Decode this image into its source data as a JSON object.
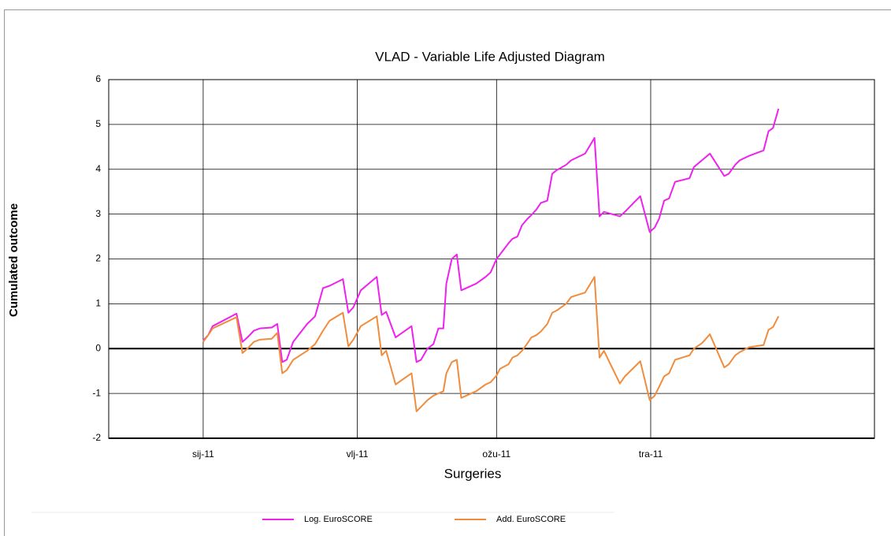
{
  "chart_data": {
    "type": "line",
    "title": "VLAD - Variable Life Adjusted Diagram",
    "x_label": "Surgeries",
    "y_label": "Cumulated outcome",
    "x": [
      0,
      1.0,
      1.9,
      6.7,
      7.9,
      8.9,
      10.2,
      11.4,
      13.8,
      14.9,
      15.9,
      16.8,
      18.1,
      20.9,
      22.5,
      24.1,
      25.4,
      28.1,
      29.2,
      30.2,
      31.7,
      34.9,
      35.9,
      36.8,
      38.7,
      41.9,
      42.9,
      43.8,
      45.1,
      46.3,
      47.3,
      48.3,
      48.9,
      50.0,
      51.0,
      51.9,
      54.9,
      56.8,
      57.8,
      59.0,
      59.7,
      61.4,
      62.2,
      63.2,
      64.1,
      65.1,
      66.0,
      67.0,
      67.9,
      69.2,
      70.2,
      71.1,
      73.0,
      74.0,
      76.8,
      78.7,
      79.7,
      80.6,
      83.8,
      84.8,
      87.0,
      87.9,
      89.8,
      90.8,
      91.7,
      92.7,
      93.7,
      94.9,
      97.8,
      98.7,
      100.3,
      101.9,
      104.8,
      105.7,
      107.0,
      107.9,
      109.8,
      112.7,
      113.7,
      114.6,
      115.7
    ],
    "series": [
      {
        "name": "Log. EuroSCORE",
        "color": "#ee22ee",
        "values": [
          0.18,
          0.3,
          0.5,
          0.78,
          0.15,
          0.25,
          0.4,
          0.45,
          0.47,
          0.55,
          -0.3,
          -0.25,
          0.15,
          0.55,
          0.72,
          1.35,
          1.4,
          1.55,
          0.8,
          0.92,
          1.3,
          1.6,
          0.75,
          0.82,
          0.25,
          0.5,
          -0.3,
          -0.25,
          0.0,
          0.1,
          0.45,
          0.45,
          1.45,
          2.0,
          2.1,
          1.3,
          1.45,
          1.6,
          1.7,
          2.0,
          2.1,
          2.35,
          2.45,
          2.5,
          2.75,
          2.88,
          2.98,
          3.1,
          3.25,
          3.3,
          3.9,
          3.98,
          4.1,
          4.2,
          4.35,
          4.7,
          2.95,
          3.05,
          2.95,
          3.05,
          3.3,
          3.4,
          2.6,
          2.7,
          2.9,
          3.3,
          3.35,
          3.72,
          3.8,
          4.05,
          4.2,
          4.35,
          3.85,
          3.9,
          4.1,
          4.2,
          4.3,
          4.42,
          4.85,
          4.92,
          5.35
        ]
      },
      {
        "name": "Add. EuroSCORE",
        "color": "#f08c3c",
        "values": [
          0.15,
          0.3,
          0.45,
          0.7,
          -0.1,
          0.0,
          0.15,
          0.2,
          0.22,
          0.35,
          -0.55,
          -0.48,
          -0.25,
          -0.05,
          0.1,
          0.4,
          0.62,
          0.8,
          0.05,
          0.2,
          0.5,
          0.72,
          -0.15,
          -0.05,
          -0.8,
          -0.55,
          -1.4,
          -1.3,
          -1.15,
          -1.05,
          -1.0,
          -0.95,
          -0.55,
          -0.3,
          -0.25,
          -1.1,
          -0.95,
          -0.8,
          -0.75,
          -0.6,
          -0.45,
          -0.35,
          -0.2,
          -0.15,
          -0.05,
          0.1,
          0.25,
          0.3,
          0.38,
          0.55,
          0.8,
          0.85,
          1.0,
          1.15,
          1.25,
          1.6,
          -0.2,
          -0.05,
          -0.78,
          -0.62,
          -0.38,
          -0.28,
          -1.15,
          -1.05,
          -0.85,
          -0.62,
          -0.55,
          -0.25,
          -0.15,
          0.0,
          0.12,
          0.32,
          -0.42,
          -0.35,
          -0.15,
          -0.08,
          0.03,
          0.08,
          0.42,
          0.48,
          0.72
        ]
      }
    ],
    "xlim": [
      -19,
      135
    ],
    "xticks": [
      {
        "value": 0,
        "label": "sij-11"
      },
      {
        "value": 31,
        "label": "vlj-11"
      },
      {
        "value": 59,
        "label": "ožu-11"
      },
      {
        "value": 90,
        "label": "tra-11"
      }
    ],
    "ylim": [
      -2,
      6
    ],
    "yticks": [
      -2,
      -1,
      0,
      1,
      2,
      3,
      4,
      5,
      6
    ],
    "grid": true,
    "zero_line": true,
    "legend": "bottom"
  }
}
